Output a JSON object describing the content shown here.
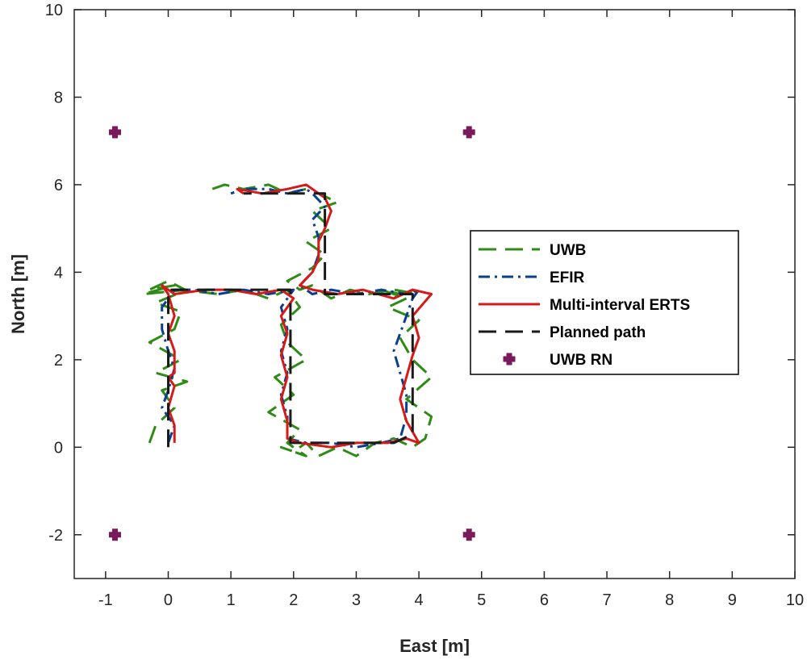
{
  "chart_data": {
    "type": "line",
    "xlabel": "East [m]",
    "ylabel": "North [m]",
    "xlim": [
      -1.5,
      10
    ],
    "ylim": [
      -3,
      10
    ],
    "xticks": [
      -1,
      0,
      1,
      2,
      3,
      4,
      5,
      6,
      7,
      8,
      9,
      10
    ],
    "yticks": [
      -2,
      0,
      2,
      4,
      6,
      8,
      10
    ],
    "grid": false,
    "legend_position": "right",
    "series": [
      {
        "name": "UWB",
        "color": "#2e8b16",
        "style": "dashed",
        "x": [
          -0.3,
          -0.2,
          0.1,
          -0.1,
          0.3,
          -0.2,
          0.2,
          -0.3,
          0.1,
          0.2,
          -0.2,
          0.3,
          -0.4,
          0.1,
          -0.3,
          0.0,
          0.4,
          0.2,
          0.8,
          1.2,
          1.6,
          1.9,
          2.1,
          1.8,
          1.9,
          2.2,
          1.7,
          2.0,
          1.6,
          2.1,
          1.9,
          2.2,
          1.8,
          2.0,
          2.2,
          2.4,
          2.7,
          3.0,
          3.3,
          3.6,
          3.9,
          4.1,
          4.2,
          3.8,
          4.2,
          3.9,
          3.7,
          4.0,
          3.5,
          3.8,
          3.4,
          3.7,
          3.6,
          3.9,
          4.0,
          3.6,
          3.2,
          2.9,
          2.6,
          2.3,
          2.1,
          1.9,
          2.3,
          2.5,
          2.2,
          2.6,
          2.3,
          2.7,
          2.4,
          2.2,
          1.9,
          1.6,
          1.2,
          0.9,
          0.7
        ],
        "y": [
          0.1,
          0.5,
          0.9,
          1.3,
          1.5,
          1.7,
          2.0,
          2.4,
          2.7,
          3.1,
          3.3,
          3.6,
          3.5,
          3.7,
          3.6,
          3.8,
          3.5,
          3.6,
          3.5,
          3.6,
          3.4,
          3.6,
          3.2,
          2.8,
          2.4,
          2.0,
          1.6,
          1.2,
          0.8,
          0.4,
          0.1,
          -0.2,
          0.0,
          -0.1,
          0.1,
          -0.2,
          0.0,
          -0.2,
          0.1,
          0.2,
          0.0,
          0.2,
          0.7,
          1.1,
          1.6,
          2.0,
          2.5,
          2.9,
          3.2,
          3.4,
          3.6,
          3.5,
          3.4,
          3.6,
          3.5,
          3.6,
          3.5,
          3.6,
          3.4,
          3.7,
          3.6,
          3.8,
          4.1,
          4.4,
          4.7,
          5.0,
          5.4,
          5.6,
          5.8,
          5.9,
          5.8,
          6.0,
          5.9,
          6.0,
          5.9
        ]
      },
      {
        "name": "EFIR",
        "color": "#0a3e8f",
        "style": "dashdot",
        "x": [
          0.0,
          0.1,
          -0.1,
          0.0,
          0.1,
          0.0,
          -0.1,
          -0.1,
          0.1,
          0.4,
          0.8,
          1.2,
          1.6,
          2.0,
          1.8,
          1.9,
          1.8,
          1.9,
          1.8,
          1.9,
          1.9,
          2.2,
          2.6,
          3.0,
          3.4,
          3.7,
          3.8,
          3.8,
          3.7,
          3.6,
          3.7,
          3.8,
          3.9,
          4.0,
          3.8,
          3.4,
          3.0,
          2.6,
          2.3,
          2.1,
          2.3,
          2.4,
          2.4,
          2.3,
          2.5,
          2.3,
          2.2,
          1.9,
          1.6,
          1.2,
          1.0
        ],
        "y": [
          0.1,
          0.5,
          0.9,
          1.3,
          1.8,
          2.2,
          2.7,
          3.2,
          3.6,
          3.6,
          3.5,
          3.6,
          3.5,
          3.6,
          3.2,
          2.7,
          2.2,
          1.7,
          1.2,
          0.7,
          0.2,
          0.1,
          0.1,
          0.0,
          0.1,
          0.2,
          0.7,
          1.2,
          1.7,
          2.2,
          2.6,
          3.0,
          3.4,
          3.6,
          3.5,
          3.6,
          3.5,
          3.6,
          3.5,
          3.7,
          4.0,
          4.4,
          4.8,
          5.2,
          5.5,
          5.8,
          5.9,
          5.8,
          5.9,
          5.9,
          5.8
        ]
      },
      {
        "name": "Multi-interval ERTS",
        "color": "#d61a1a",
        "style": "solid",
        "x": [
          0.1,
          0.1,
          0.0,
          0.1,
          0.0,
          0.1,
          0.1,
          0.0,
          0.1,
          0.0,
          -0.1,
          0.1,
          0.6,
          1.0,
          1.4,
          1.8,
          2.0,
          1.8,
          1.9,
          1.8,
          1.9,
          1.8,
          1.9,
          1.9,
          2.1,
          2.6,
          3.0,
          3.5,
          3.8,
          4.0,
          3.8,
          3.7,
          3.8,
          3.9,
          4.0,
          3.9,
          4.2,
          3.9,
          3.6,
          3.1,
          2.7,
          2.3,
          2.1,
          2.3,
          2.4,
          2.4,
          2.5,
          2.6,
          2.5,
          2.3,
          2.2,
          1.9,
          1.5,
          1.1,
          1.2
        ],
        "y": [
          0.1,
          0.5,
          0.9,
          1.4,
          1.6,
          1.7,
          2.2,
          2.6,
          3.0,
          3.5,
          3.7,
          3.5,
          3.6,
          3.6,
          3.5,
          3.6,
          3.4,
          3.0,
          2.6,
          2.1,
          1.6,
          1.1,
          0.6,
          0.2,
          0.1,
          0.0,
          0.1,
          0.1,
          0.2,
          0.1,
          0.6,
          1.1,
          1.6,
          2.1,
          2.5,
          3.0,
          3.5,
          3.6,
          3.4,
          3.6,
          3.5,
          3.6,
          3.7,
          4.0,
          4.3,
          4.7,
          5.0,
          5.4,
          5.7,
          5.9,
          6.0,
          5.9,
          5.8,
          5.9,
          5.8
        ]
      },
      {
        "name": "Planned path",
        "color": "#1a1a1a",
        "style": "dashed",
        "x": [
          0.0,
          0.0,
          1.95,
          1.95,
          3.6,
          3.9,
          3.9,
          2.5,
          2.5,
          1.2,
          1.2
        ],
        "y": [
          0.0,
          3.6,
          3.6,
          0.1,
          0.1,
          0.3,
          3.5,
          3.5,
          5.8,
          5.8,
          5.8
        ]
      }
    ],
    "markers": {
      "name": "UWB RN",
      "color": "#7a1a5c",
      "shape": "plus",
      "points": [
        {
          "x": -0.85,
          "y": 7.2
        },
        {
          "x": 4.8,
          "y": 7.2
        },
        {
          "x": -0.85,
          "y": -2.0
        },
        {
          "x": 4.8,
          "y": -2.0
        }
      ]
    }
  }
}
